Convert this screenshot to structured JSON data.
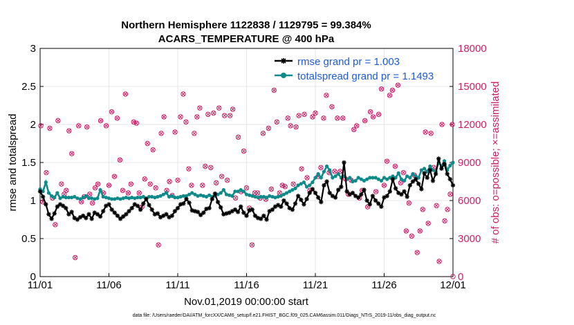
{
  "chart_data": {
    "type": "line",
    "title_line1": "Northern Hemisphere 1122838 / 1129795 = 99.384%",
    "title_line2": "ACARS_TEMPERATURE @ 400 hPa",
    "xlabel": "Nov.01,2019 00:00:00 start",
    "ylabel_left": "rmse and totalspread",
    "ylabel_right": "# of obs: o=possible; ×=assimilated",
    "footer": "data file: /Users/raeder/DAI/ATM_forcXX/CAM6_setup/f.e21.FHIST_BGC.f09_025.CAM6assim.011/Diags_NTrS_2019-11/obs_diag_output.nc",
    "x_ticks": [
      "11/01",
      "11/06",
      "11/11",
      "11/16",
      "11/21",
      "11/26",
      "12/01"
    ],
    "x_range_days": [
      0,
      30
    ],
    "ylim_left": [
      0,
      3
    ],
    "y_ticks_left": [
      "0",
      "0.5",
      "1",
      "1.5",
      "2",
      "2.5",
      "3"
    ],
    "ylim_right": [
      0,
      18000
    ],
    "y_ticks_right": [
      "0",
      "3000",
      "6000",
      "9000",
      "12000",
      "15000",
      "18000"
    ],
    "legend": [
      {
        "label": "rmse grand pr = 1.003",
        "color": "#000000"
      },
      {
        "label": "totalspread grand pr = 1.1493",
        "color": "#0e8a8a"
      }
    ],
    "colors": {
      "rmse": "#000000",
      "spread": "#0e8a8a",
      "obs": "#cc1f66",
      "grid": "#e6e6e6"
    },
    "rmse": [
      1.12,
      1.05,
      0.95,
      0.82,
      0.76,
      0.83,
      0.92,
      0.95,
      0.93,
      0.9,
      0.82,
      0.85,
      0.77,
      0.75,
      0.78,
      0.8,
      0.77,
      0.82,
      0.76,
      0.84,
      0.82,
      0.79,
      0.86,
      0.93,
      0.95,
      0.88,
      0.84,
      0.8,
      0.76,
      0.79,
      0.82,
      0.86,
      0.9,
      0.95,
      0.93,
      0.88,
      0.96,
      1.02,
      0.94,
      0.88,
      0.82,
      0.83,
      0.78,
      0.8,
      0.82,
      0.78,
      0.8,
      0.86,
      0.9,
      0.95,
      0.96,
      1.02,
      0.97,
      0.87,
      0.86,
      0.85,
      0.81,
      0.84,
      0.89,
      0.9,
      1.02,
      1.09,
      0.98,
      0.91,
      0.82,
      0.83,
      0.84,
      0.86,
      0.88,
      0.85,
      0.92,
      0.84,
      0.8,
      0.87,
      0.88,
      0.8,
      0.77,
      0.76,
      0.8,
      0.75,
      0.86,
      0.88,
      0.92,
      0.94,
      0.92,
      1.0,
      0.96,
      0.9,
      0.88,
      0.96,
      1.06,
      1.01,
      0.95,
      1.02,
      1.1,
      1.15,
      1.1,
      1.04,
      0.98,
      1.2,
      1.25,
      1.1,
      1.06,
      1.04,
      1.14,
      1.18,
      1.5,
      1.12,
      1.08,
      1.1,
      1.06,
      1.04,
      1.08,
      1.14,
      1.0,
      0.95,
      1.06,
      1.0,
      0.96,
      0.92,
      1.04,
      1.06,
      1.12,
      1.28,
      1.16,
      1.1,
      1.08,
      1.12,
      1.05,
      1.2,
      1.25,
      1.28,
      1.22,
      1.15,
      1.36,
      1.3,
      1.4,
      1.26,
      1.35,
      1.55,
      1.42,
      1.48,
      1.35,
      1.28,
      1.2
    ],
    "spread": [
      1.15,
      1.12,
      1.24,
      1.1,
      1.06,
      1.04,
      1.1,
      1.03,
      1.05,
      1.04,
      1.04,
      1.04,
      1.05,
      1.03,
      1.02,
      1.04,
      1.06,
      1.03,
      1.03,
      1.02,
      1.03,
      1.14,
      1.05,
      1.04,
      1.03,
      1.02,
      1.02,
      1.03,
      1.02,
      1.03,
      1.04,
      1.03,
      1.04,
      1.03,
      1.04,
      1.04,
      1.05,
      1.03,
      1.05,
      1.05,
      1.04,
      1.05,
      1.06,
      1.08,
      1.1,
      1.05,
      1.06,
      1.04,
      1.04,
      1.05,
      1.06,
      1.06,
      1.08,
      1.1,
      1.08,
      1.06,
      1.07,
      1.06,
      1.05,
      1.07,
      1.05,
      1.06,
      1.08,
      1.1,
      1.14,
      1.08,
      1.07,
      1.06,
      1.12,
      1.12,
      1.14,
      1.12,
      1.08,
      1.07,
      1.06,
      1.05,
      1.04,
      1.05,
      1.05,
      1.04,
      1.06,
      1.05,
      1.04,
      1.05,
      1.06,
      1.08,
      1.1,
      1.12,
      1.14,
      1.16,
      1.2,
      1.22,
      1.24,
      1.18,
      1.2,
      1.24,
      1.3,
      1.35,
      1.3,
      1.38,
      1.45,
      1.4,
      1.3,
      1.32,
      1.35,
      1.3,
      1.32,
      1.28,
      1.3,
      1.25,
      1.26,
      1.3,
      1.28,
      1.26,
      1.28,
      1.3,
      1.3,
      1.3,
      1.28,
      1.26,
      1.3,
      1.28,
      1.3,
      1.32,
      1.3,
      1.36,
      1.28,
      1.26,
      1.32,
      1.3,
      1.35,
      1.32,
      1.3,
      1.4,
      1.42,
      1.38,
      1.45,
      1.4,
      1.38,
      1.5,
      1.45,
      1.52,
      1.4,
      1.46,
      1.5
    ],
    "obs_x": [
      0.05,
      0.2,
      0.45,
      0.7,
      0.9,
      1.1,
      1.3,
      1.55,
      1.75,
      1.9,
      2.1,
      2.3,
      2.55,
      2.8,
      3.0,
      3.2,
      3.4,
      3.6,
      3.8,
      4.0,
      4.2,
      4.4,
      4.6,
      4.8,
      5.0,
      5.2,
      5.4,
      5.6,
      5.8,
      6.0,
      6.2,
      6.4,
      6.6,
      6.8,
      7.0,
      7.2,
      7.4,
      7.6,
      7.8,
      8.0,
      8.2,
      8.4,
      8.6,
      8.8,
      9.0,
      9.2,
      9.4,
      9.6,
      9.8,
      10.0,
      10.2,
      10.4,
      10.6,
      10.8,
      11.0,
      11.2,
      11.4,
      11.6,
      11.8,
      12.0,
      12.2,
      12.4,
      12.6,
      12.8,
      13.0,
      13.2,
      13.4,
      13.6,
      13.8,
      14.0,
      14.2,
      14.4,
      14.6,
      14.8,
      15.0,
      15.2,
      15.4,
      15.6,
      15.8,
      16.0,
      16.2,
      16.4,
      16.6,
      16.8,
      17.0,
      17.2,
      17.4,
      17.6,
      17.8,
      18.0,
      18.2,
      18.4,
      18.6,
      18.8,
      19.0,
      19.2,
      19.4,
      19.6,
      19.8,
      20.0,
      20.2,
      20.4,
      20.6,
      20.8,
      21.0,
      21.2,
      21.4,
      21.6,
      21.8,
      22.0,
      22.2,
      22.4,
      22.6,
      22.8,
      23.0,
      23.2,
      23.4,
      23.6,
      23.8,
      24.0,
      24.2,
      24.4,
      24.6,
      24.8,
      25.0,
      25.2,
      25.4,
      25.6,
      25.8,
      26.0,
      26.2,
      26.4,
      26.6,
      26.8,
      27.0,
      27.2,
      27.4,
      27.6,
      27.8,
      28.0,
      28.2,
      28.4,
      28.6,
      28.8,
      29.0,
      29.2,
      29.4,
      29.6,
      29.8,
      29.95
    ],
    "obs_count": [
      11900,
      5900,
      8200,
      11700,
      6200,
      4100,
      12300,
      7300,
      6500,
      6800,
      11500,
      9700,
      1500,
      11900,
      5900,
      6300,
      11800,
      6500,
      5800,
      7000,
      7300,
      12300,
      6600,
      11900,
      7200,
      13000,
      7900,
      12500,
      9200,
      6800,
      14400,
      6600,
      7300,
      12200,
      12100,
      6600,
      5500,
      7700,
      10500,
      7300,
      10000,
      7000,
      2500,
      11300,
      12600,
      6800,
      7500,
      6400,
      11400,
      7600,
      12600,
      14400,
      12200,
      8500,
      7200,
      11300,
      12600,
      13300,
      7200,
      8700,
      12800,
      8600,
      12900,
      7400,
      13300,
      7900,
      12700,
      7600,
      12700,
      13200,
      6200,
      11000,
      6700,
      9900,
      7000,
      5400,
      2500,
      6600,
      6600,
      6200,
      11300,
      6100,
      11700,
      6900,
      14700,
      12200,
      6600,
      7200,
      7100,
      12500,
      11900,
      7300,
      11800,
      12700,
      8500,
      12800,
      7800,
      6800,
      12600,
      12900,
      7900,
      8600,
      12500,
      14300,
      8200,
      13400,
      8300,
      12500,
      8300,
      12500,
      7700,
      6500,
      7600,
      11600,
      11900,
      6200,
      6800,
      12300,
      5500,
      13000,
      12600,
      6700,
      12800,
      14800,
      7200,
      9100,
      14300,
      14700,
      8700,
      15100,
      7400,
      8200,
      3600,
      5800,
      3200,
      8000,
      1900,
      3600,
      5300,
      11400,
      4200,
      11300,
      8600,
      5600,
      1200,
      12000,
      4400,
      5300,
      6500,
      12000
    ],
    "obs_zero": 0
  }
}
